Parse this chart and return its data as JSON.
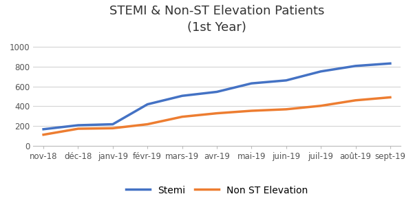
{
  "title": "STEMI & Non-ST Elevation Patients\n(1st Year)",
  "categories": [
    "nov-18",
    "déc-18",
    "janv-19",
    "févr-19",
    "mars-19",
    "avr-19",
    "mai-19",
    "juin-19",
    "juil-19",
    "août-19",
    "sept-19"
  ],
  "stemi": [
    170,
    210,
    220,
    420,
    505,
    545,
    630,
    660,
    750,
    805,
    830
  ],
  "non_st": [
    115,
    175,
    180,
    220,
    295,
    330,
    355,
    370,
    405,
    460,
    490
  ],
  "stemi_color": "#4472C4",
  "non_st_color": "#ED7D31",
  "stemi_label": "Stemi",
  "non_st_label": "Non ST Elevation",
  "ylim": [
    0,
    1100
  ],
  "yticks": [
    0,
    200,
    400,
    600,
    800,
    1000
  ],
  "background_color": "#ffffff",
  "grid_color": "#d3d3d3",
  "title_fontsize": 13,
  "legend_fontsize": 10,
  "tick_fontsize": 8.5,
  "line_width": 2.5
}
